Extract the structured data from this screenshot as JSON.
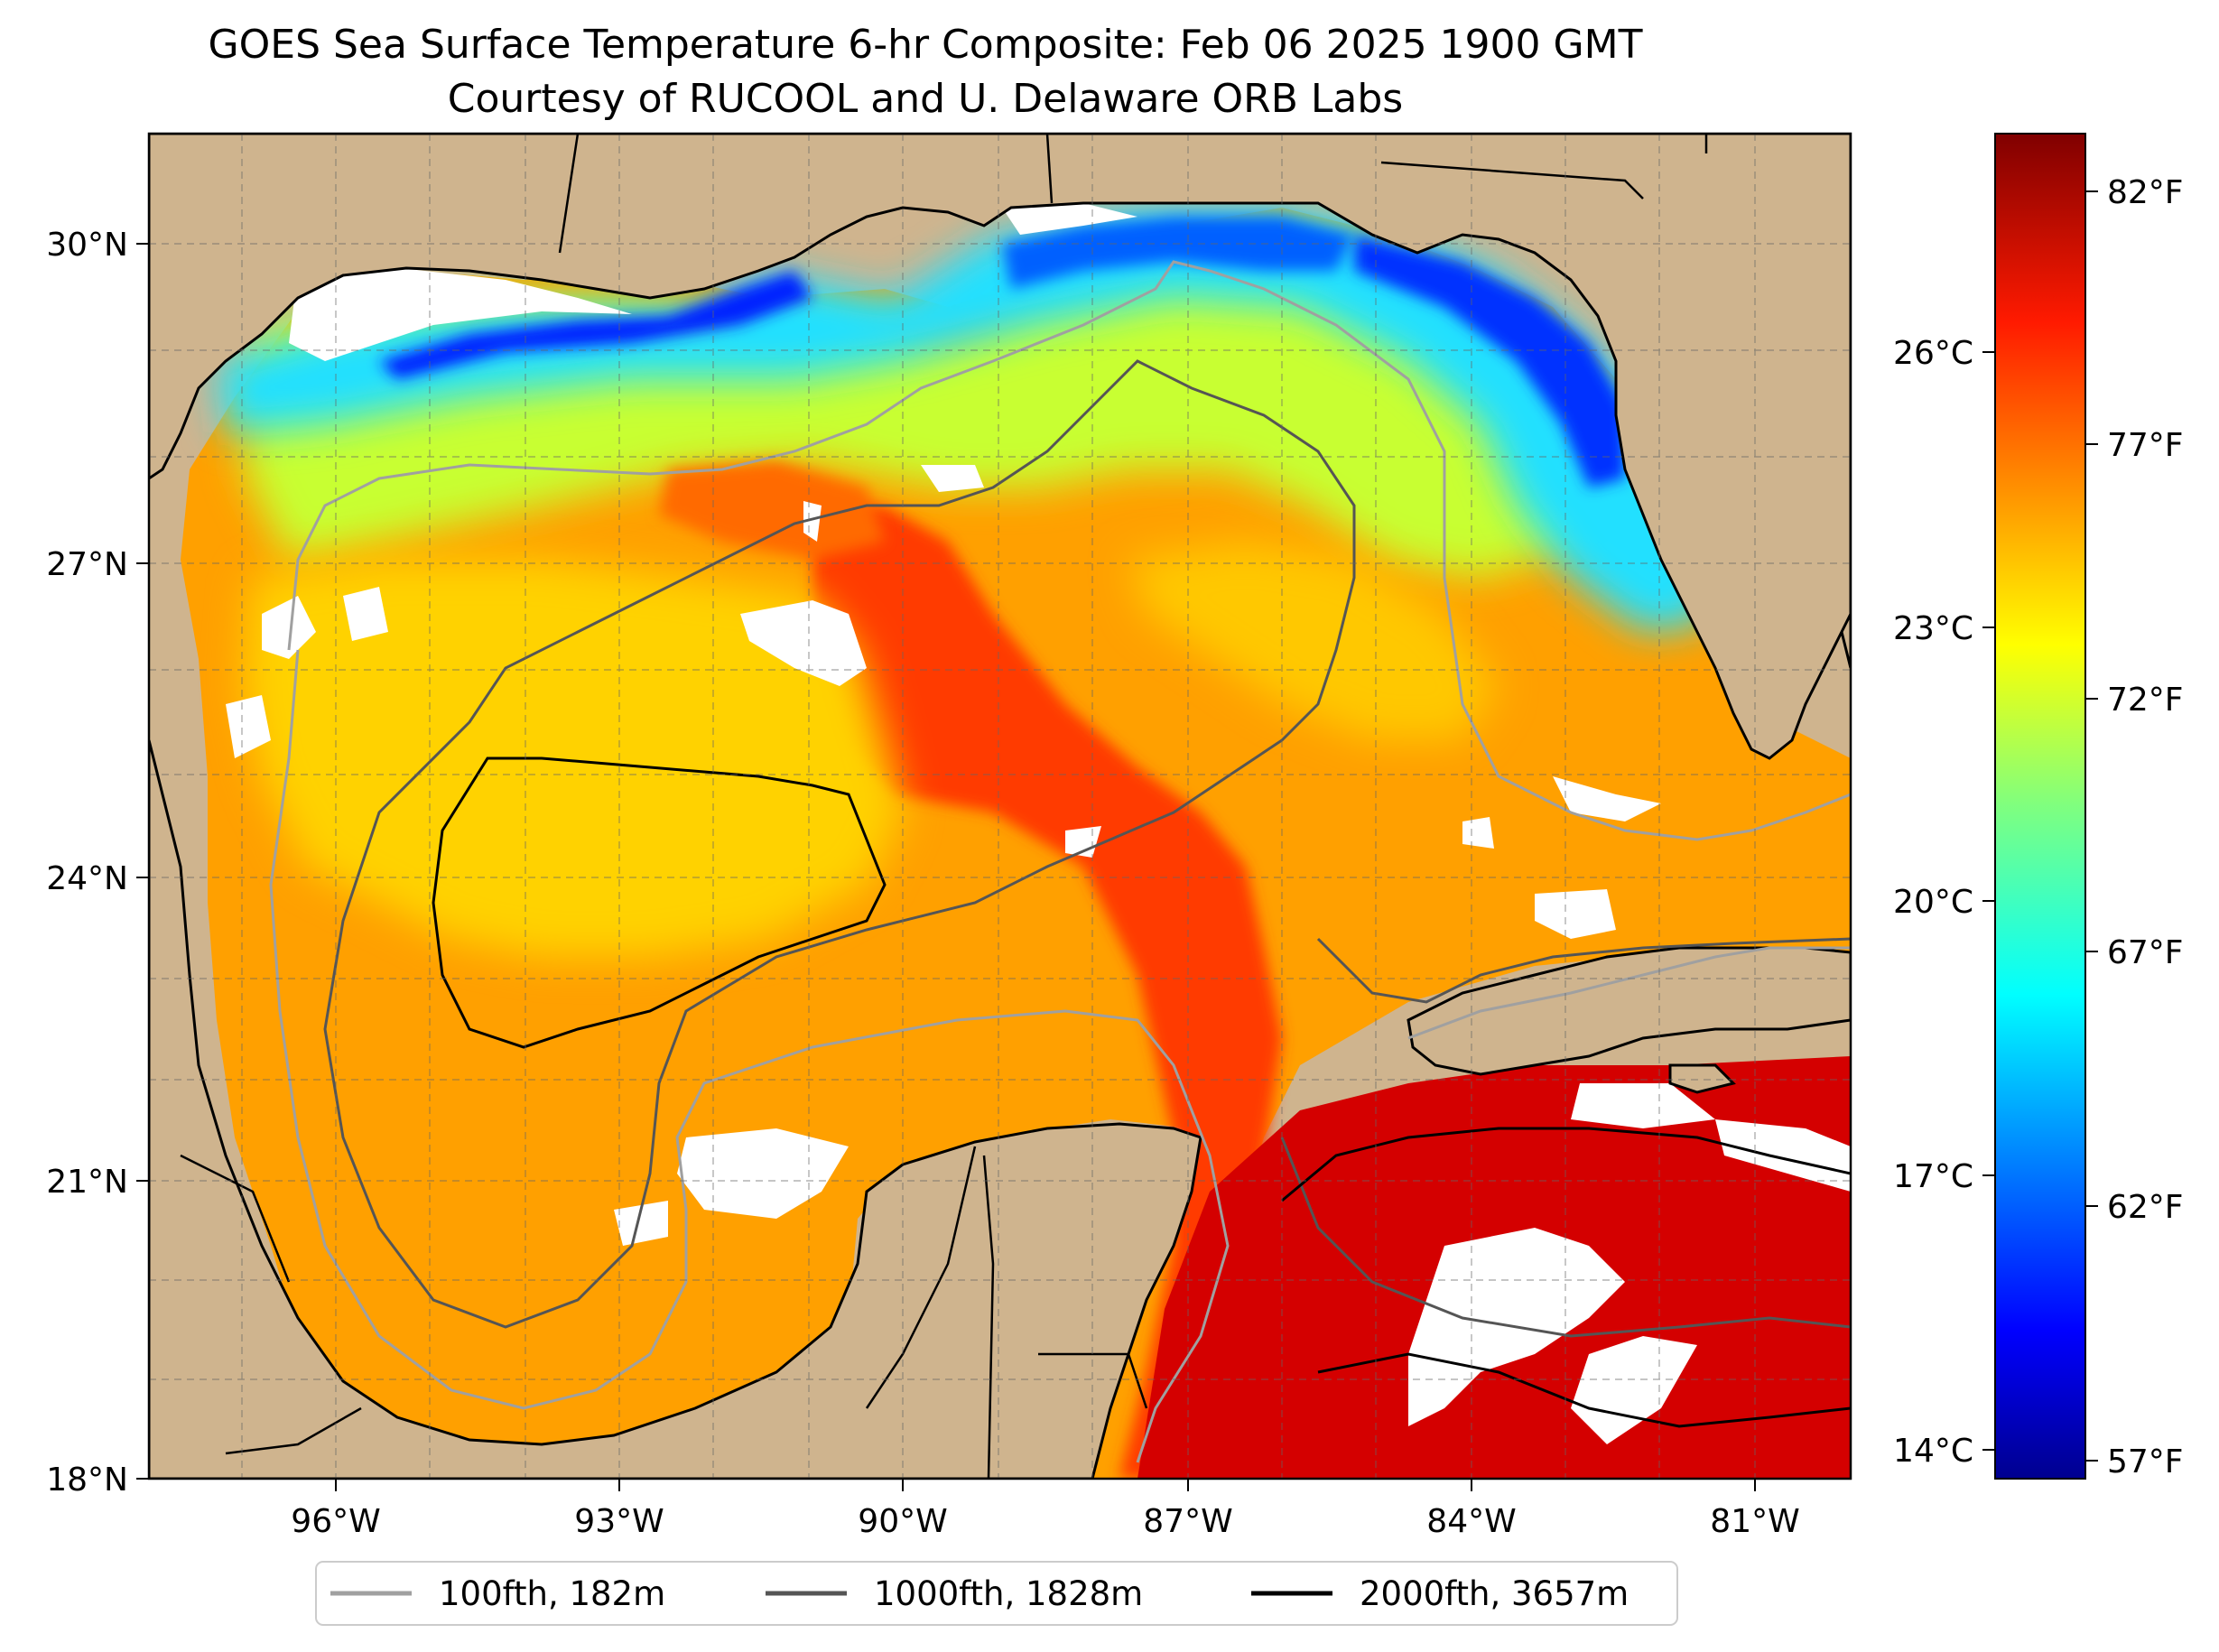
{
  "header": {
    "title": "GOES Sea Surface Temperature 6-hr Composite: Feb 06 2025 1900 GMT",
    "subtitle": "Courtesy of RUCOOL and U. Delaware ORB Labs"
  },
  "map": {
    "lon_range": [
      -98.0,
      -80.0
    ],
    "lat_range": [
      18.0,
      31.0
    ],
    "gridlines": true,
    "land_color": "#cfb48e",
    "no_data_color": "#ffffff",
    "lon_ticks": [
      "96°W",
      "93°W",
      "90°W",
      "87°W",
      "84°W",
      "81°W"
    ],
    "lat_ticks": [
      "30°N",
      "27°N",
      "24°N",
      "21°N",
      "18°N"
    ]
  },
  "colorbar": {
    "colormap": "jet",
    "celsius_ticks": [
      "26°C",
      "23°C",
      "20°C",
      "17°C",
      "14°C"
    ],
    "fahrenheit_ticks": [
      "82°F",
      "77°F",
      "72°F",
      "67°F",
      "62°F",
      "57°F"
    ]
  },
  "legend": {
    "items": [
      {
        "label": "100fth, 182m",
        "color": "#a0a0a0"
      },
      {
        "label": "1000fth, 1828m",
        "color": "#555555"
      },
      {
        "label": "2000fth, 3657m",
        "color": "#000000"
      }
    ]
  }
}
